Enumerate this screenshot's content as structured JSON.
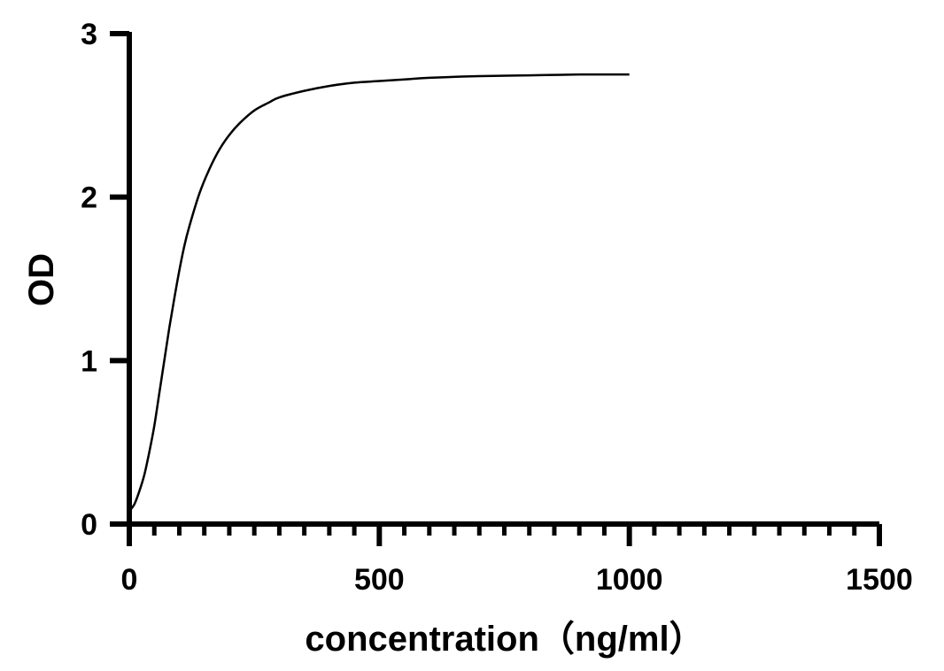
{
  "chart_data": {
    "type": "line",
    "title": "",
    "xlabel": "concentration（ng/ml）",
    "ylabel": "OD",
    "xlim": [
      0,
      1500
    ],
    "ylim": [
      0,
      3
    ],
    "x_ticks": [
      0,
      500,
      1000,
      1500
    ],
    "y_ticks": [
      0,
      1,
      2,
      3
    ],
    "x_minor_tick_step": 50,
    "grid": false,
    "legend": "none",
    "line_color": "#000000",
    "series": [
      {
        "x": [
          0,
          10,
          20,
          30,
          40,
          50,
          60,
          70,
          80,
          90,
          100,
          110,
          120,
          140,
          160,
          180,
          200,
          220,
          250,
          280,
          300,
          350,
          400,
          450,
          500,
          550,
          600,
          700,
          800,
          900,
          1000
        ],
        "values": [
          0.08,
          0.12,
          0.2,
          0.3,
          0.44,
          0.6,
          0.8,
          1.0,
          1.2,
          1.38,
          1.55,
          1.7,
          1.82,
          2.02,
          2.17,
          2.29,
          2.38,
          2.45,
          2.53,
          2.58,
          2.61,
          2.65,
          2.68,
          2.7,
          2.71,
          2.72,
          2.73,
          2.74,
          2.745,
          2.75,
          2.75
        ]
      }
    ]
  }
}
